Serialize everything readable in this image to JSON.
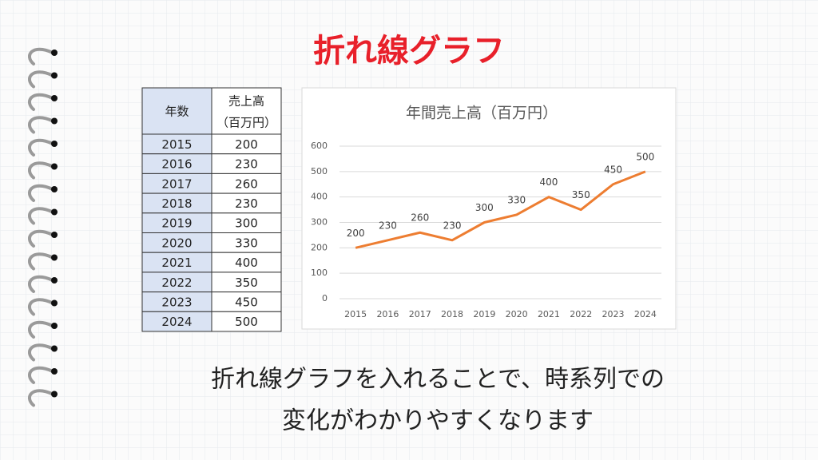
{
  "title": "折れ線グラフ",
  "table": {
    "header": [
      "年数",
      "売上高",
      "（百万円）"
    ],
    "rows": [
      [
        2015,
        200
      ],
      [
        2016,
        230
      ],
      [
        2017,
        260
      ],
      [
        2018,
        230
      ],
      [
        2019,
        300
      ],
      [
        2020,
        330
      ],
      [
        2021,
        400
      ],
      [
        2022,
        350
      ],
      [
        2023,
        450
      ],
      [
        2024,
        500
      ]
    ]
  },
  "chart_data": {
    "type": "line",
    "title": "年間売上高（百万円）",
    "categories": [
      "2015",
      "2016",
      "2017",
      "2018",
      "2019",
      "2020",
      "2021",
      "2022",
      "2023",
      "2024"
    ],
    "values": [
      200,
      230,
      260,
      230,
      300,
      330,
      400,
      350,
      450,
      500
    ],
    "color": "#ed7d31",
    "ylim": [
      0,
      600
    ],
    "yticks": [
      0,
      100,
      200,
      300,
      400,
      500,
      600
    ],
    "grid": true,
    "data_labels": true
  },
  "caption": [
    "折れ線グラフを入れることで、時系列での",
    "変化がわかりやすくなります"
  ]
}
